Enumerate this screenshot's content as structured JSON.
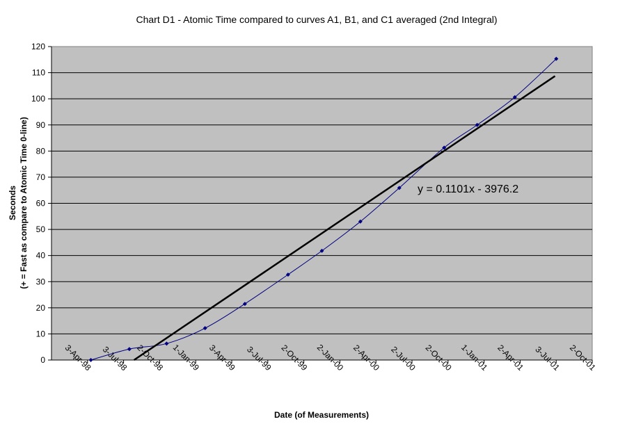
{
  "chart_data": {
    "type": "line",
    "title": "Chart D1 - Atomic Time compared to curves A1, B1, and C1 averaged (2nd Integral)",
    "xlabel": "Date (of Measurements)",
    "ylabel_line1": "Seconds",
    "ylabel_line2": "(+ = Fast as compare to Atomic Time 0-line)",
    "x_ticks": [
      "3-Apr-98",
      "3-Jul-98",
      "2-Oct-98",
      "1-Jan-99",
      "3-Apr-99",
      "3-Jul-99",
      "2-Oct-99",
      "2-Jan-00",
      "2-Apr-00",
      "2-Jul-00",
      "2-Oct-00",
      "1-Jan-01",
      "2-Apr-01",
      "3-Jul-01",
      "2-Oct-01"
    ],
    "xlim": [
      "1998-04-03",
      "2001-10-02"
    ],
    "ylim": [
      0,
      120
    ],
    "y_ticks": [
      0,
      10,
      20,
      30,
      40,
      50,
      60,
      70,
      80,
      90,
      100,
      110,
      120
    ],
    "grid": "horizontal",
    "plot_background": "#C0C0C0",
    "series": [
      {
        "color": "#000080",
        "x": [
          "1998-07-05",
          "1998-10-04",
          "1998-12-31",
          "1999-04-01",
          "1999-07-04",
          "1999-10-14",
          "2000-01-02",
          "2000-04-02",
          "2000-07-03",
          "2000-10-17",
          "2001-01-03",
          "2001-04-02",
          "2001-07-09"
        ],
        "y": [
          0,
          4.2,
          6.3,
          12.2,
          21.5,
          32.7,
          41.8,
          53,
          65.9,
          81.3,
          90,
          100.6,
          115.3
        ]
      }
    ],
    "trendline": {
      "equation": "y = 0.1101x - 3976.2",
      "color": "#000000",
      "x": [
        "1998-10-15",
        "2001-07-06"
      ],
      "y": [
        0,
        108.7
      ]
    }
  }
}
